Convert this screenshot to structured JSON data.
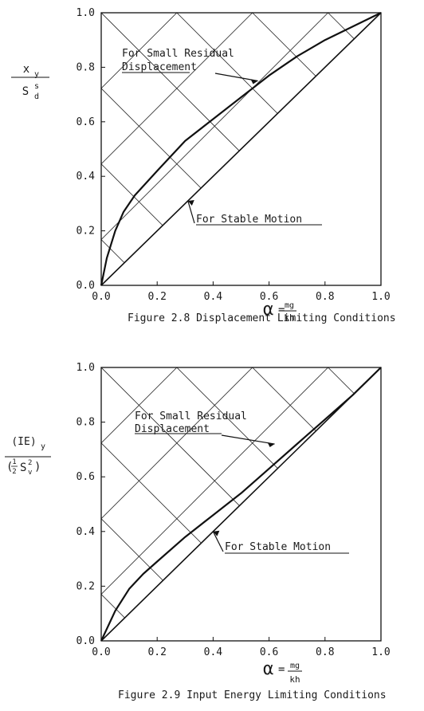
{
  "chart_data": [
    {
      "type": "line",
      "caption": "Figure 2.8  Displacement Limiting Conditions",
      "ylabel": {
        "numerator": "x",
        "numerator_sub": "y",
        "denominator": "S",
        "denominator_sup": "s",
        "denominator_sub": "d"
      },
      "xlabel": {
        "symbol": "α",
        "equals": "=",
        "numerator": "mg",
        "denominator": "kh"
      },
      "xlim": [
        0,
        1
      ],
      "ylim": [
        0,
        1
      ],
      "x_ticks": [
        "0.0",
        "0.2",
        "0.4",
        "0.6",
        "0.8",
        "1.0"
      ],
      "y_ticks": [
        "0.0",
        "0.2",
        "0.4",
        "0.6",
        "0.8",
        "1.0"
      ],
      "grid": "diagonal cross-hatch above the stable-motion line",
      "annotations": [
        {
          "id": "small",
          "lines": [
            "For Small Residual",
            "Displacement"
          ],
          "pointer": "leader arrow to upper curve"
        },
        {
          "id": "stable",
          "lines": [
            "For Stable Motion"
          ],
          "pointer": "leader arrow to diagonal line"
        }
      ],
      "series": [
        {
          "id": "upper",
          "x": [
            0,
            0.02,
            0.05,
            0.08,
            0.12,
            0.2,
            0.3,
            0.4,
            0.5,
            0.6,
            0.7,
            0.8,
            0.9,
            1.0
          ],
          "y": [
            0,
            0.1,
            0.2,
            0.27,
            0.33,
            0.42,
            0.53,
            0.61,
            0.69,
            0.77,
            0.84,
            0.9,
            0.95,
            1.0
          ]
        },
        {
          "id": "diagonal",
          "x": [
            0,
            1
          ],
          "y": [
            0,
            1
          ]
        }
      ]
    },
    {
      "type": "line",
      "caption": "Figure 2.9  Input Energy Limiting Conditions",
      "ylabel": {
        "numerator": "(IE)",
        "numerator_sub": "y",
        "denominator_prefix": "(",
        "half_num": "1",
        "half_den": "2",
        "denominator": "S",
        "denominator_sup": "2",
        "denominator_sub": "v",
        "denominator_suffix": ")"
      },
      "xlabel": {
        "symbol": "α",
        "equals": "=",
        "numerator": "mg",
        "denominator": "kh"
      },
      "xlim": [
        0,
        1
      ],
      "ylim": [
        0,
        1
      ],
      "x_ticks": [
        "0.0",
        "0.2",
        "0.4",
        "0.6",
        "0.8",
        "1.0"
      ],
      "y_ticks": [
        "0.0",
        "0.2",
        "0.4",
        "0.6",
        "0.8",
        "1.0"
      ],
      "grid": "diagonal cross-hatch above the stable-motion line",
      "annotations": [
        {
          "id": "small",
          "lines": [
            "For Small Residual",
            "Displacement"
          ],
          "pointer": "leader arrow to upper curve"
        },
        {
          "id": "stable",
          "lines": [
            "For Stable Motion"
          ],
          "pointer": "leader arrow to diagonal line"
        }
      ],
      "series": [
        {
          "id": "upper",
          "x": [
            0,
            0.05,
            0.1,
            0.15,
            0.2,
            0.3,
            0.4,
            0.5,
            0.6,
            0.7,
            0.8,
            0.9,
            1.0
          ],
          "y": [
            0,
            0.11,
            0.19,
            0.245,
            0.29,
            0.38,
            0.46,
            0.54,
            0.63,
            0.72,
            0.81,
            0.9,
            1.0
          ]
        },
        {
          "id": "diagonal",
          "x": [
            0,
            1
          ],
          "y": [
            0,
            1
          ]
        }
      ]
    }
  ]
}
